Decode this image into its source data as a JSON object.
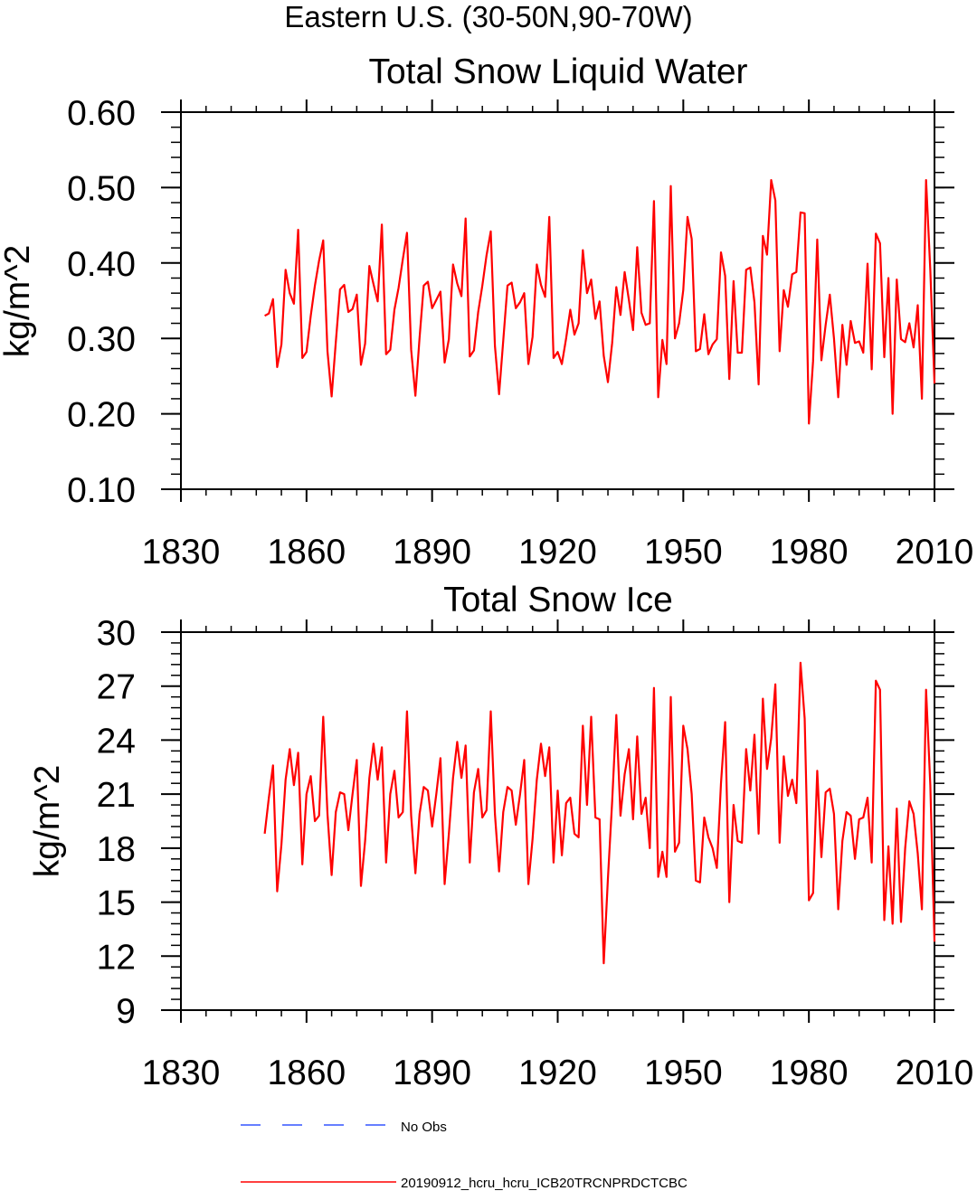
{
  "suptitle": "Eastern U.S. (30-50N,90-70W)",
  "colors": {
    "series": "#ff0000",
    "no_obs": "#3355ff",
    "axis": "#000000"
  },
  "legend": {
    "placement": "bottom",
    "entries": [
      {
        "label": "No Obs",
        "style": "dashed",
        "color": "#3355ff"
      },
      {
        "label": "20190912_hcru_hcru_ICB20TRCNPRDCTCBC",
        "style": "solid",
        "color": "#ff0000"
      }
    ]
  },
  "chart_data": [
    {
      "type": "line",
      "title": "Total Snow Liquid Water",
      "xlabel": "",
      "ylabel": "kg/m^2",
      "xlim": [
        1830,
        2010
      ],
      "ylim": [
        0.1,
        0.6
      ],
      "xticks": [
        "1830",
        "1860",
        "1890",
        "1920",
        "1950",
        "1980",
        "2010"
      ],
      "yticks": [
        "0.10",
        "0.20",
        "0.30",
        "0.40",
        "0.50",
        "0.60"
      ],
      "grid": false,
      "series": [
        {
          "name": "20190912_hcru_hcru_ICB20TRCNPRDCTCBC",
          "x_start": 1850,
          "values": [
            0.33,
            0.333,
            0.352,
            0.262,
            0.292,
            0.391,
            0.36,
            0.346,
            0.444,
            0.274,
            0.282,
            0.33,
            0.37,
            0.403,
            0.43,
            0.283,
            0.223,
            0.295,
            0.365,
            0.371,
            0.335,
            0.339,
            0.358,
            0.265,
            0.293,
            0.396,
            0.372,
            0.349,
            0.451,
            0.279,
            0.285,
            0.338,
            0.367,
            0.405,
            0.44,
            0.285,
            0.224,
            0.301,
            0.37,
            0.375,
            0.34,
            0.351,
            0.362,
            0.268,
            0.299,
            0.398,
            0.373,
            0.356,
            0.459,
            0.276,
            0.284,
            0.335,
            0.37,
            0.41,
            0.442,
            0.29,
            0.226,
            0.297,
            0.37,
            0.374,
            0.34,
            0.348,
            0.36,
            0.266,
            0.302,
            0.398,
            0.371,
            0.355,
            0.461,
            0.274,
            0.282,
            0.266,
            0.3,
            0.338,
            0.305,
            0.32,
            0.417,
            0.36,
            0.378,
            0.326,
            0.349,
            0.277,
            0.242,
            0.294,
            0.368,
            0.331,
            0.388,
            0.351,
            0.311,
            0.421,
            0.334,
            0.318,
            0.32,
            0.482,
            0.222,
            0.298,
            0.266,
            0.502,
            0.3,
            0.32,
            0.364,
            0.461,
            0.432,
            0.283,
            0.286,
            0.332,
            0.279,
            0.292,
            0.299,
            0.414,
            0.383,
            0.246,
            0.376,
            0.281,
            0.281,
            0.391,
            0.394,
            0.348,
            0.239,
            0.436,
            0.411,
            0.51,
            0.483,
            0.283,
            0.364,
            0.342,
            0.385,
            0.388,
            0.467,
            0.466,
            0.187,
            0.27,
            0.431,
            0.271,
            0.318,
            0.358,
            0.3,
            0.222,
            0.318,
            0.265,
            0.323,
            0.294,
            0.296,
            0.281,
            0.399,
            0.259,
            0.439,
            0.426,
            0.275,
            0.38,
            0.2,
            0.378,
            0.299,
            0.295,
            0.32,
            0.288,
            0.344,
            0.22,
            0.51,
            0.39,
            0.24
          ]
        }
      ]
    },
    {
      "type": "line",
      "title": "Total Snow Ice",
      "xlabel": "",
      "ylabel": "kg/m^2",
      "xlim": [
        1830,
        2010
      ],
      "ylim": [
        9,
        30
      ],
      "xticks": [
        "1830",
        "1860",
        "1890",
        "1920",
        "1950",
        "1980",
        "2010"
      ],
      "yticks": [
        "9",
        "12",
        "15",
        "18",
        "21",
        "24",
        "27",
        "30"
      ],
      "grid": false,
      "series": [
        {
          "name": "20190912_hcru_hcru_ICB20TRCNPRDCTCBC",
          "x_start": 1850,
          "values": [
            18.8,
            20.8,
            22.6,
            15.6,
            18.2,
            21.8,
            23.5,
            21.5,
            23.3,
            17.1,
            21.0,
            22.0,
            19.5,
            19.8,
            25.3,
            19.9,
            16.5,
            20.0,
            21.1,
            21.0,
            19.0,
            21.0,
            22.9,
            15.9,
            18.4,
            21.9,
            23.8,
            21.8,
            23.6,
            17.2,
            21.0,
            22.3,
            19.7,
            20.0,
            25.6,
            19.8,
            16.6,
            19.9,
            21.4,
            21.2,
            19.2,
            21.0,
            23.0,
            16.0,
            18.8,
            21.9,
            23.9,
            21.9,
            23.7,
            17.2,
            21.1,
            22.4,
            19.7,
            20.1,
            25.6,
            19.9,
            16.7,
            20.0,
            21.4,
            21.2,
            19.3,
            21.0,
            22.9,
            16.0,
            18.5,
            21.8,
            23.8,
            22.0,
            23.6,
            17.2,
            21.2,
            17.6,
            20.5,
            20.8,
            18.8,
            18.6,
            24.8,
            20.4,
            25.3,
            19.7,
            19.6,
            11.6,
            16.3,
            20.6,
            25.4,
            19.8,
            22.1,
            23.5,
            19.6,
            24.2,
            19.9,
            20.8,
            18.0,
            26.9,
            16.4,
            17.8,
            16.4,
            26.4,
            17.8,
            18.3,
            24.8,
            23.5,
            21.0,
            16.2,
            16.1,
            19.7,
            18.6,
            18.0,
            16.9,
            21.6,
            25.0,
            15.0,
            20.4,
            18.4,
            18.3,
            23.5,
            21.2,
            24.3,
            18.8,
            26.3,
            22.4,
            24.1,
            27.1,
            18.3,
            23.1,
            20.9,
            21.8,
            20.5,
            28.3,
            25.2,
            15.1,
            15.5,
            22.3,
            17.5,
            21.1,
            21.3,
            19.9,
            14.6,
            18.4,
            20.0,
            19.8,
            17.4,
            19.6,
            19.7,
            20.8,
            17.2,
            27.3,
            26.8,
            14.0,
            18.1,
            13.8,
            20.2,
            13.9,
            18.0,
            20.6,
            19.9,
            17.7,
            14.6,
            26.8,
            21.5,
            12.8
          ]
        }
      ]
    }
  ]
}
